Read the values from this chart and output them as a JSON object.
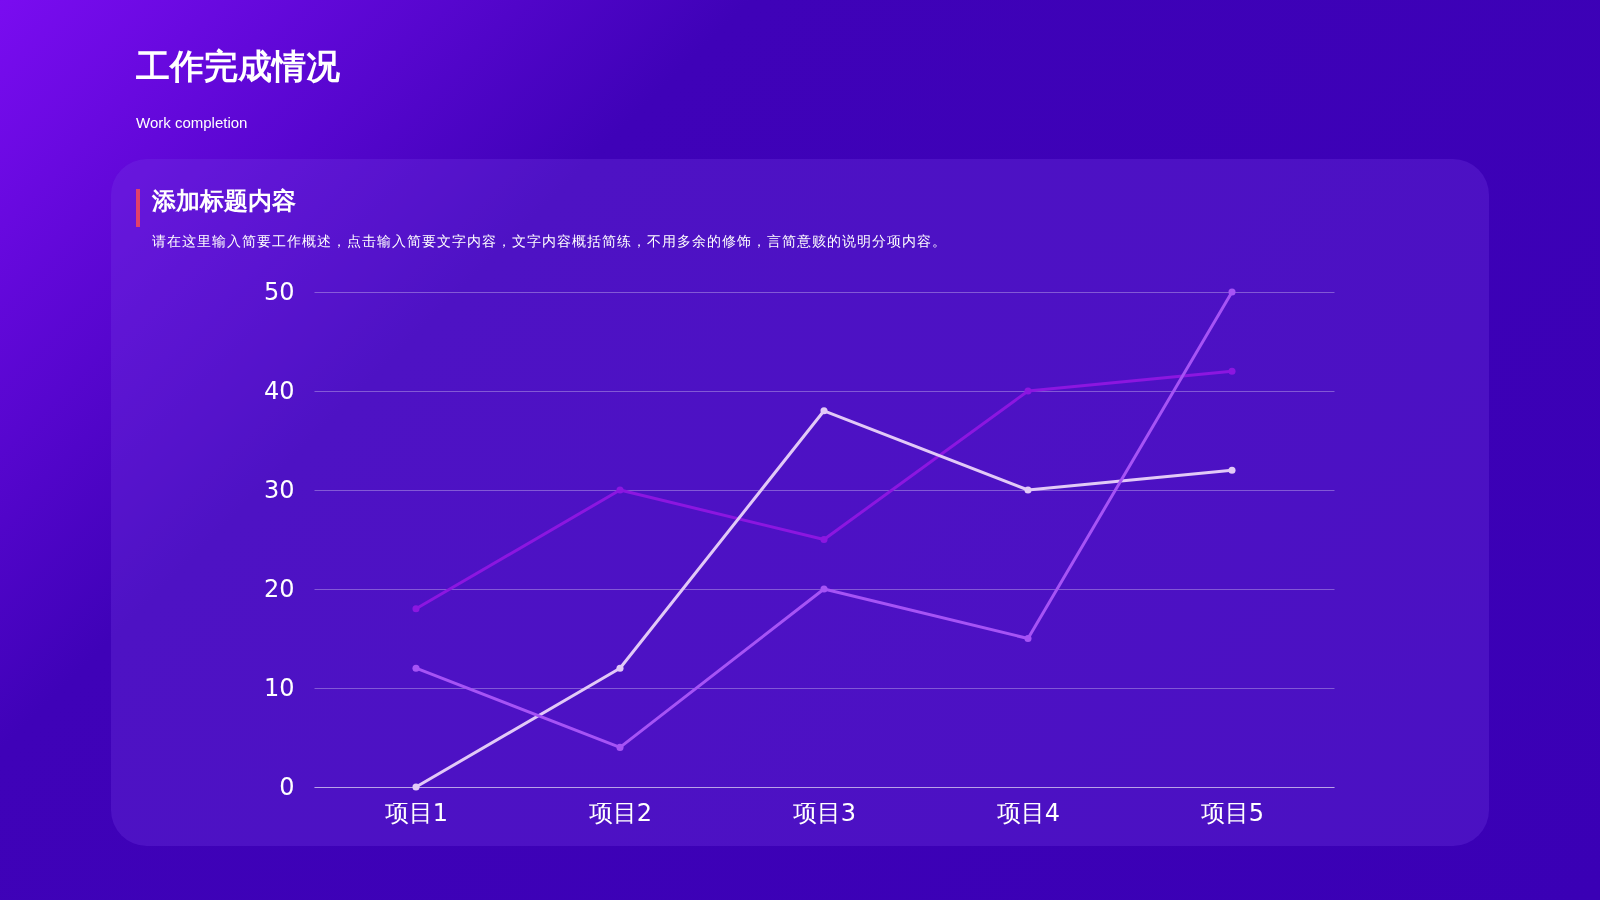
{
  "chart_data": {
    "type": "line",
    "title": "工作完成情况",
    "subtitle": "Work completion",
    "annotations": [
      "添加标题内容",
      "请在这里输入简要工作概述，点击输入简要文字内容，文字内容概括简练，不用多余的修饰，言简意赅的说明分项内容。"
    ],
    "categories": [
      "项目1",
      "项目2",
      "项目3",
      "项目4",
      "项目5"
    ],
    "series": [
      {
        "color": "#8c16e0",
        "values": [
          18,
          30,
          25,
          40,
          42
        ]
      },
      {
        "color": "#e2c9f7",
        "values": [
          0,
          12,
          38,
          30,
          32
        ]
      },
      {
        "color": "#a653f5",
        "values": [
          12,
          4,
          20,
          15,
          50
        ]
      }
    ],
    "ylim": [
      0,
      50
    ],
    "yticks": [
      0,
      10,
      20,
      30,
      40,
      50
    ],
    "grid": "y",
    "marker": "circle",
    "line_style": "solid"
  }
}
